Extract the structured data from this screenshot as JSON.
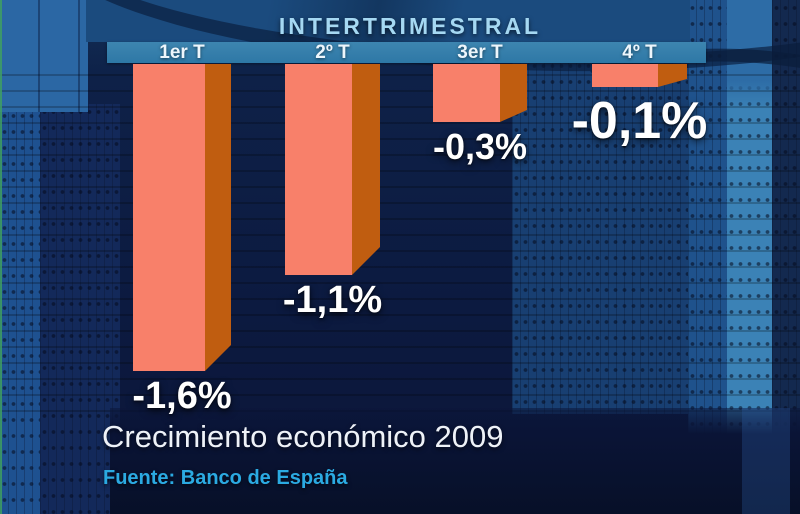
{
  "header": {
    "title": "INTERTRIMESTRAL"
  },
  "chart_data": {
    "type": "bar",
    "title": "Crecimiento económico 2009",
    "source": "Fuente: Banco de España",
    "categories": [
      "1er T",
      "2º T",
      "3er T",
      "4º T"
    ],
    "values": [
      -1.6,
      -1.1,
      -0.3,
      -0.1
    ],
    "display_values": [
      "-1,6%",
      "-1,1%",
      "-0,3%",
      "-0,1%"
    ],
    "unit": "%",
    "ylim": [
      -1.8,
      0
    ],
    "orientation": "vertical-hanging",
    "legend": "none",
    "grid": "off"
  },
  "colors": {
    "header_text": "#a5d8f2",
    "band": "#2e78a6",
    "quarter_text": "#edf6fc",
    "bar_face": "#f8806a",
    "bar_side": "#c05d10",
    "value_text": "#ffffff",
    "title_text": "#eef2f8",
    "source_text": "#2baae2"
  }
}
